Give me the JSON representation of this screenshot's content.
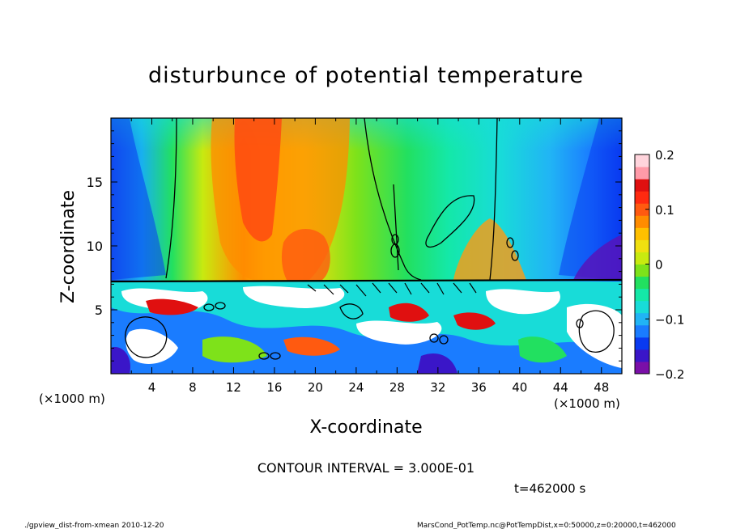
{
  "chart_data": {
    "type": "heatmap",
    "title": "disturbunce of potential temperature",
    "xlabel": "X-coordinate",
    "ylabel": "Z-coordinate",
    "x_unit_left": "(×1000 m)",
    "x_unit_right": "(×1000 m)",
    "xlim": [
      0,
      50
    ],
    "ylim": [
      0,
      20
    ],
    "x_ticks": [
      4,
      8,
      12,
      16,
      20,
      24,
      28,
      32,
      36,
      40,
      44,
      48
    ],
    "y_ticks": [
      5,
      10,
      15
    ],
    "colorbar": {
      "range": [
        -0.2,
        0.2
      ],
      "tick_values": [
        0.2,
        0.1,
        0,
        -0.1,
        -0.2
      ],
      "tick_labels": [
        "0.2",
        "0.1",
        "0",
        "−0.1",
        "−0.2"
      ],
      "colors": [
        "#7a0fa8",
        "#3a16c8",
        "#0a3af0",
        "#1a7cff",
        "#21b4f5",
        "#18dcd8",
        "#14e8a8",
        "#22e060",
        "#7ee21a",
        "#c8ea10",
        "#f0e010",
        "#ffc000",
        "#ff8c00",
        "#ff5a10",
        "#ff2a10",
        "#e01010",
        "#ff9aa8",
        "#ffd4dc"
      ]
    },
    "contour_interval": "CONTOUR INTERVAL = 3.000E-01",
    "time_label": "t=462000 s",
    "footer_left": "./gpview_dist-from-xmean  2010-12-20",
    "footer_right": "MarsCond_PotTemp.nc@PotTempDist,x=0:50000,z=0:20000,t=462000",
    "grid": false
  }
}
